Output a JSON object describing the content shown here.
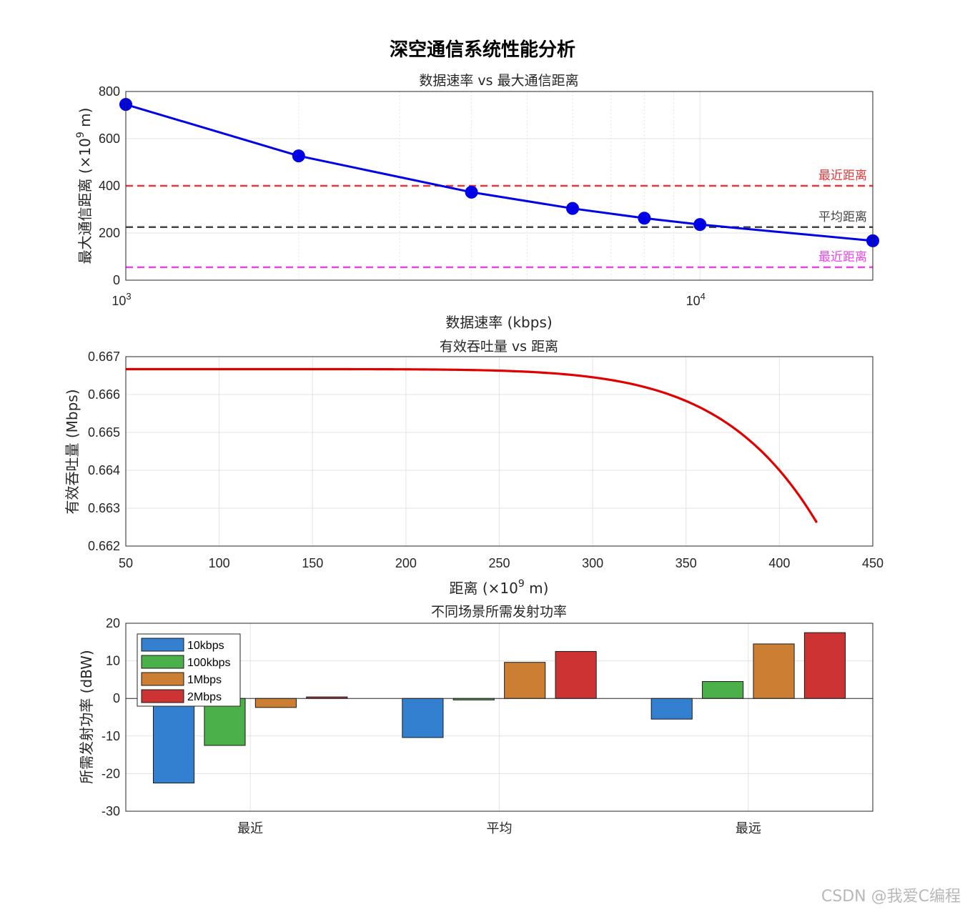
{
  "figure": {
    "title": "深空通信系统性能分析",
    "watermark": "CSDN @我爱C编程"
  },
  "chart_data": [
    {
      "type": "line",
      "title": "数据速率 vs 最大通信距离",
      "xlabel": "数据速率 (kbps)",
      "ylabel_prefix": "最大通信距离 (×10",
      "ylabel_sup": "9",
      "ylabel_suffix": " m)",
      "xscale": "log",
      "xlim": [
        1000,
        20000
      ],
      "ylim": [
        0,
        800
      ],
      "yticks": [
        0,
        200,
        400,
        600,
        800
      ],
      "xticks": [
        {
          "value": 1000,
          "base": "10",
          "exp": "3"
        },
        {
          "value": 10000,
          "base": "10",
          "exp": "4"
        }
      ],
      "series": [
        {
          "name": "max-distance",
          "color": "#0000e6",
          "x": [
            1000,
            2000,
            4000,
            6000,
            8000,
            10000,
            20000
          ],
          "y": [
            745,
            527,
            373,
            304,
            263,
            236,
            167
          ]
        }
      ],
      "reference_lines": [
        {
          "label": "最近距离",
          "y": 400,
          "color": "#e8383a"
        },
        {
          "label": "平均距离",
          "y": 225,
          "color": "#444444"
        },
        {
          "label": "最近距离",
          "y": 55,
          "color": "#ee44ee"
        }
      ],
      "grid": true
    },
    {
      "type": "line",
      "title": "有效吞吐量 vs 距离",
      "xlabel_prefix": "距离 (×10",
      "xlabel_sup": "9",
      "xlabel_suffix": " m)",
      "ylabel": "有效吞吐量 (Mbps)",
      "xlim": [
        50,
        450
      ],
      "ylim": [
        0.662,
        0.667
      ],
      "xticks": [
        50,
        100,
        150,
        200,
        250,
        300,
        350,
        400,
        450
      ],
      "yticks": [
        "0.662",
        "0.663",
        "0.664",
        "0.665",
        "0.666",
        "0.667"
      ],
      "series": [
        {
          "name": "throughput",
          "color": "#e00000",
          "x": [
            50,
            100,
            150,
            200,
            230,
            250,
            270,
            280,
            290,
            300,
            310,
            320,
            330,
            340,
            350,
            360,
            370,
            380,
            390,
            400,
            410,
            420
          ],
          "y": [
            0.66667,
            0.66667,
            0.66667,
            0.66667,
            0.666665,
            0.66666,
            0.66665,
            0.66663,
            0.6666,
            0.66655,
            0.66647,
            0.66635,
            0.66617,
            0.66593,
            0.66561,
            0.66518,
            0.66463,
            0.66395,
            0.66312,
            0.66425,
            0.66368,
            0.66262
          ]
        }
      ],
      "grid": true
    },
    {
      "type": "bar",
      "title": "不同场景所需发射功率",
      "xlabel": "",
      "ylabel": "所需发射功率 (dBW)",
      "categories": [
        "最近",
        "平均",
        "最远"
      ],
      "ylim": [
        -30,
        20
      ],
      "yticks": [
        -30,
        -20,
        -10,
        0,
        10,
        20
      ],
      "series": [
        {
          "name": "10kbps",
          "color": "#3380d1",
          "values": [
            -22.5,
            -10.4,
            -5.5
          ]
        },
        {
          "name": "100kbps",
          "color": "#4bb04a",
          "values": [
            -12.5,
            -0.4,
            4.5
          ]
        },
        {
          "name": "1Mbps",
          "color": "#cc7f33",
          "values": [
            -2.4,
            9.6,
            14.5
          ]
        },
        {
          "name": "2Mbps",
          "color": "#cc3333",
          "values": [
            0.4,
            12.5,
            17.5
          ]
        }
      ],
      "legend": "top-left",
      "grid": true
    }
  ]
}
